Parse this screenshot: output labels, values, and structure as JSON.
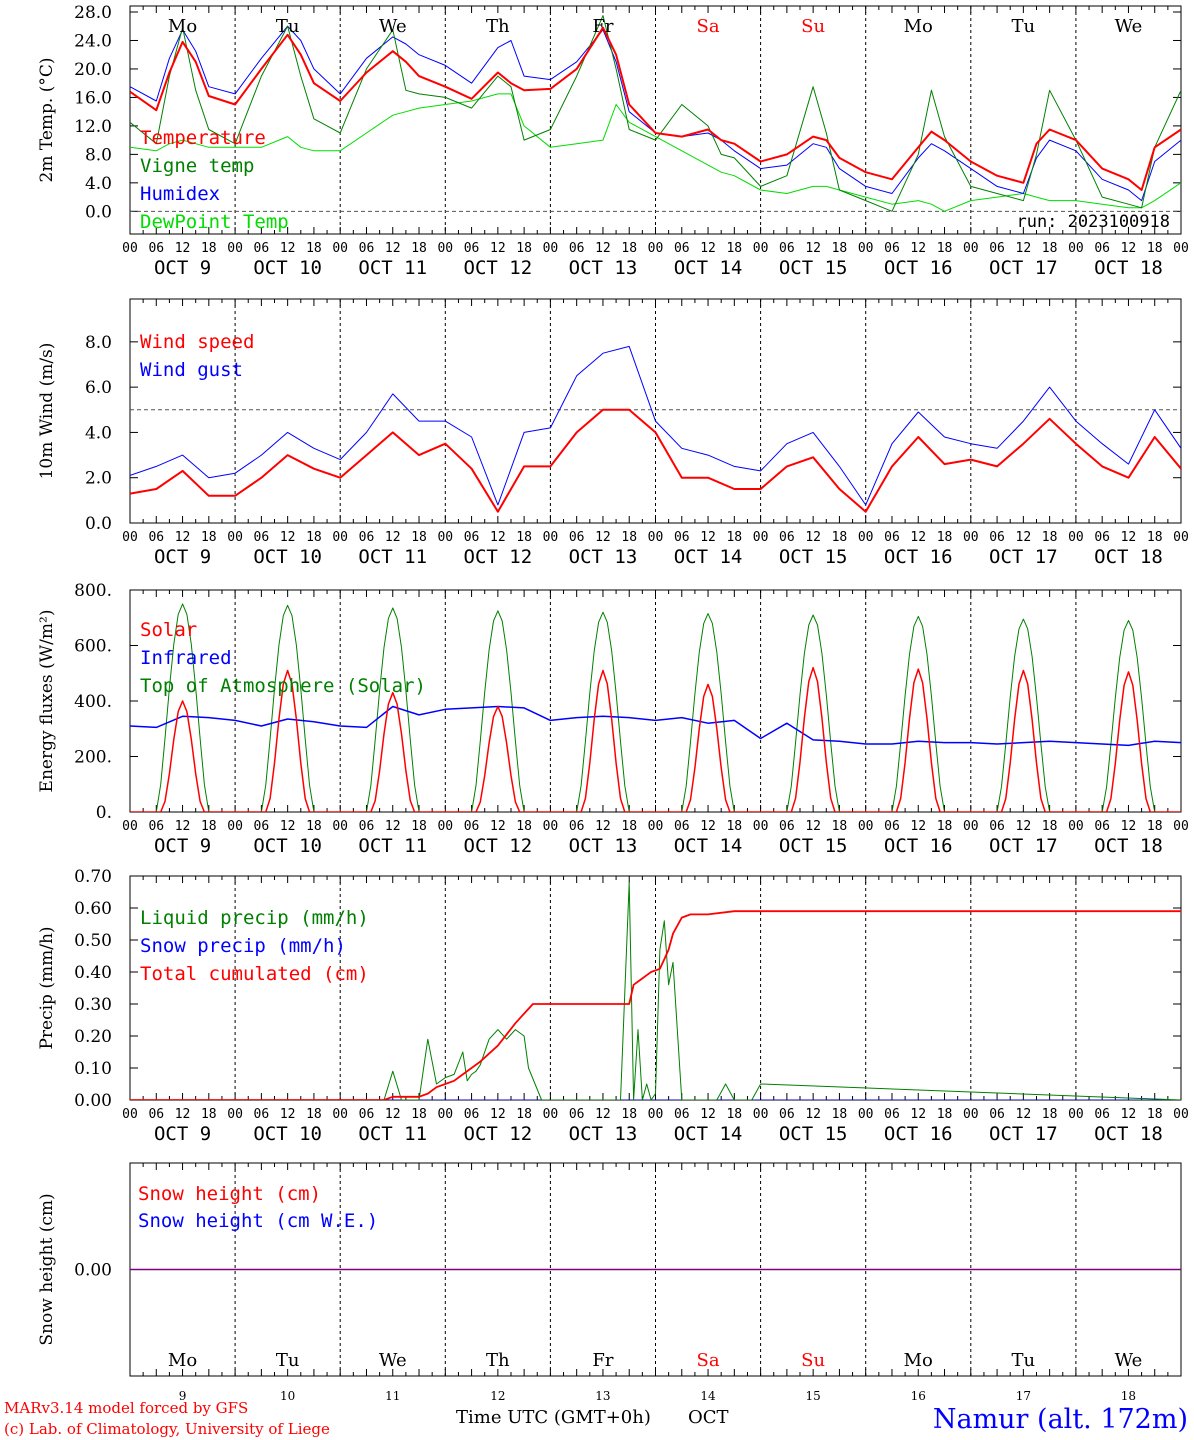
{
  "meta": {
    "run_label": "run: 2023100918",
    "credit_line1": "MARv3.14 model forced by GFS",
    "credit_line2": "(c) Lab. of Climatology, University of Liege",
    "xlabel": "Time UTC (GMT+0h)",
    "month": "OCT",
    "station": "Namur (alt. 172m)"
  },
  "days": [
    {
      "wd": "Mo",
      "date": "OCT  9",
      "num": "9",
      "weekend": false
    },
    {
      "wd": "Tu",
      "date": "OCT 10",
      "num": "10",
      "weekend": false
    },
    {
      "wd": "We",
      "date": "OCT 11",
      "num": "11",
      "weekend": false
    },
    {
      "wd": "Th",
      "date": "OCT 12",
      "num": "12",
      "weekend": false
    },
    {
      "wd": "Fr",
      "date": "OCT 13",
      "num": "13",
      "weekend": false
    },
    {
      "wd": "Sa",
      "date": "OCT 14",
      "num": "14",
      "weekend": true
    },
    {
      "wd": "Su",
      "date": "OCT 15",
      "num": "15",
      "weekend": true
    },
    {
      "wd": "Mo",
      "date": "OCT 16",
      "num": "16",
      "weekend": false
    },
    {
      "wd": "Tu",
      "date": "OCT 17",
      "num": "17",
      "weekend": false
    },
    {
      "wd": "We",
      "date": "OCT 18",
      "num": "18",
      "weekend": false
    }
  ],
  "hour_ticks": [
    "00",
    "06",
    "12",
    "18"
  ],
  "final_tick": "00",
  "colors": {
    "red": "#ff0000",
    "green": "#008000",
    "blue": "#0000ff",
    "lightgreen": "#00dd00",
    "weekend": "#ff0000",
    "station": "#0000ff",
    "snow": "#800080"
  },
  "chart_data": [
    {
      "type": "line",
      "id": "temp",
      "ylabel": "2m Temp. (°C)",
      "ylim": [
        -1.5,
        28.0
      ],
      "yticks": [
        "28.0",
        "24.0",
        "20.0",
        "16.0",
        "12.0",
        "8.0",
        "4.0",
        "0.0"
      ],
      "ytick_values": [
        28,
        24,
        20,
        16,
        12,
        8,
        4,
        0
      ],
      "refline": 0,
      "legend_placement": "left-bottom",
      "x_hours": [
        0,
        6,
        9,
        12,
        15,
        18,
        24,
        30,
        36,
        39,
        42,
        48,
        54,
        60,
        63,
        66,
        72,
        78,
        84,
        87,
        90,
        96,
        102,
        108,
        111,
        114,
        120,
        126,
        132,
        135,
        138,
        144,
        150,
        156,
        159,
        162,
        168,
        174,
        180,
        183,
        186,
        192,
        198,
        204,
        207,
        210,
        216,
        222,
        228,
        231,
        234,
        240
      ],
      "series": [
        {
          "name": "Temperature",
          "color": "#ff0000",
          "width": 2,
          "values": [
            16.8,
            14.2,
            19.5,
            23.8,
            21.0,
            16.2,
            15.0,
            20.0,
            24.8,
            22.0,
            18.0,
            15.5,
            19.5,
            22.5,
            21.0,
            19.0,
            17.5,
            15.8,
            19.5,
            18.0,
            17.0,
            17.2,
            20.0,
            25.8,
            22.0,
            15.0,
            11.0,
            10.5,
            11.5,
            10.0,
            9.5,
            7.0,
            8.0,
            10.5,
            10.0,
            7.5,
            5.5,
            4.5,
            9.0,
            11.2,
            10.0,
            7.0,
            5.0,
            4.0,
            9.5,
            11.5,
            10.0,
            6.0,
            4.5,
            3.0,
            9.0,
            11.5
          ]
        },
        {
          "name": "Vigne temp",
          "color": "#008000",
          "width": 1,
          "values": [
            12.5,
            9.5,
            19.0,
            25.8,
            17.0,
            11.5,
            9.5,
            19.0,
            26.0,
            19.0,
            13.0,
            11.0,
            20.0,
            25.5,
            17.0,
            16.5,
            16.0,
            14.5,
            19.0,
            17.5,
            10.0,
            11.5,
            19.0,
            27.5,
            20.0,
            11.5,
            10.0,
            15.0,
            12.0,
            8.0,
            7.5,
            3.5,
            5.0,
            17.5,
            11.0,
            3.0,
            1.5,
            0.0,
            8.0,
            17.0,
            10.5,
            3.5,
            2.5,
            1.5,
            8.0,
            17.0,
            10.0,
            2.0,
            1.0,
            0.5,
            9.0,
            17.0
          ]
        },
        {
          "name": "Humidex",
          "color": "#0000ff",
          "width": 1,
          "values": [
            17.5,
            15.5,
            21.5,
            25.5,
            22.5,
            17.5,
            16.5,
            21.5,
            26.0,
            24.0,
            20.0,
            16.5,
            21.5,
            24.5,
            23.5,
            22.0,
            20.5,
            18.0,
            23.0,
            24.0,
            19.0,
            18.5,
            21.0,
            25.5,
            21.0,
            14.0,
            11.0,
            10.5,
            11.0,
            10.0,
            8.5,
            6.0,
            6.5,
            9.5,
            9.0,
            6.0,
            3.5,
            2.5,
            7.5,
            9.5,
            8.5,
            6.0,
            3.5,
            2.5,
            7.5,
            10.0,
            8.5,
            4.5,
            3.0,
            1.5,
            7.0,
            10.0
          ]
        },
        {
          "name": "DewPoint Temp",
          "color": "#00dd00",
          "width": 1,
          "values": [
            9.0,
            8.5,
            9.5,
            10.0,
            9.5,
            9.0,
            9.0,
            9.0,
            10.5,
            9.0,
            8.5,
            8.5,
            11.0,
            13.5,
            14.0,
            14.5,
            15.0,
            15.5,
            16.5,
            16.5,
            12.0,
            9.0,
            9.5,
            10.0,
            15.0,
            12.5,
            10.5,
            8.5,
            6.5,
            5.5,
            5.0,
            3.0,
            2.5,
            3.5,
            3.5,
            3.0,
            2.0,
            1.0,
            1.5,
            1.0,
            0.0,
            1.5,
            2.0,
            2.5,
            2.0,
            1.5,
            1.5,
            1.0,
            0.5,
            0.5,
            1.5,
            4.0
          ]
        }
      ]
    },
    {
      "type": "line",
      "id": "wind",
      "ylabel": "10m Wind (m/s)",
      "ylim": [
        0,
        8.7
      ],
      "yticks": [
        "8.0",
        "6.0",
        "4.0",
        "2.0",
        "0.0"
      ],
      "ytick_values": [
        8,
        6,
        4,
        2,
        0
      ],
      "refline": 5.0,
      "legend_placement": "top-left",
      "x_hours": [
        0,
        6,
        12,
        18,
        24,
        30,
        36,
        42,
        48,
        54,
        60,
        66,
        72,
        78,
        84,
        90,
        96,
        102,
        108,
        114,
        120,
        126,
        132,
        138,
        144,
        150,
        156,
        162,
        168,
        174,
        180,
        186,
        192,
        198,
        204,
        210,
        216,
        222,
        228,
        234,
        240
      ],
      "series": [
        {
          "name": "Wind speed",
          "color": "#ff0000",
          "width": 2,
          "values": [
            1.3,
            1.5,
            2.3,
            1.2,
            1.2,
            2.0,
            3.0,
            2.4,
            2.0,
            3.0,
            4.0,
            3.0,
            3.5,
            2.4,
            0.5,
            2.5,
            2.5,
            4.0,
            5.0,
            5.0,
            4.0,
            2.0,
            2.0,
            1.5,
            1.5,
            2.5,
            2.9,
            1.5,
            0.5,
            2.5,
            3.8,
            2.6,
            2.8,
            2.5,
            3.5,
            4.6,
            3.5,
            2.5,
            2.0,
            3.8,
            2.4
          ]
        },
        {
          "name": "Wind gust",
          "color": "#0000ff",
          "width": 1,
          "values": [
            2.1,
            2.5,
            3.0,
            2.0,
            2.2,
            3.0,
            4.0,
            3.3,
            2.8,
            4.0,
            5.7,
            4.5,
            4.5,
            3.8,
            0.8,
            4.0,
            4.2,
            6.5,
            7.5,
            7.8,
            4.5,
            3.3,
            3.0,
            2.5,
            2.3,
            3.5,
            4.0,
            2.5,
            0.8,
            3.5,
            4.9,
            3.8,
            3.5,
            3.3,
            4.5,
            6.0,
            4.5,
            3.5,
            2.6,
            5.0,
            3.3
          ]
        }
      ]
    },
    {
      "type": "line",
      "id": "energy",
      "ylabel": "Energy fluxes (W/m²)",
      "ylim": [
        0,
        800
      ],
      "yticks": [
        "800.",
        "600.",
        "400.",
        "200.",
        "0."
      ],
      "ytick_values": [
        800,
        600,
        400,
        200,
        0
      ],
      "legend_placement": "top-left",
      "diurnal_peaks": {
        "toa_solar": [
          750,
          745,
          735,
          725,
          720,
          715,
          710,
          705,
          695,
          690
        ],
        "solar": [
          400,
          510,
          430,
          380,
          510,
          460,
          520,
          515,
          510,
          505
        ]
      },
      "infrared": {
        "x_hours": [
          0,
          6,
          12,
          18,
          24,
          30,
          36,
          42,
          48,
          54,
          60,
          66,
          72,
          78,
          84,
          90,
          96,
          102,
          108,
          114,
          120,
          126,
          132,
          138,
          144,
          150,
          156,
          162,
          168,
          174,
          180,
          186,
          192,
          198,
          204,
          210,
          216,
          222,
          228,
          234,
          240
        ],
        "values": [
          310,
          305,
          345,
          340,
          330,
          310,
          335,
          325,
          310,
          305,
          380,
          350,
          370,
          375,
          380,
          375,
          330,
          340,
          345,
          340,
          330,
          340,
          320,
          330,
          265,
          320,
          260,
          255,
          245,
          245,
          255,
          250,
          250,
          245,
          250,
          255,
          250,
          245,
          240,
          255,
          250
        ]
      },
      "series": [
        {
          "name": "Solar",
          "color": "#ff0000"
        },
        {
          "name": "Infrared",
          "color": "#0000ff"
        },
        {
          "name": "Top of Atmosphere (Solar)",
          "color": "#008000"
        }
      ]
    },
    {
      "type": "line",
      "id": "precip",
      "ylabel": "Precip (mm/h)",
      "ylim": [
        0,
        0.7
      ],
      "yticks": [
        "0.70",
        "0.60",
        "0.50",
        "0.40",
        "0.30",
        "0.20",
        "0.10",
        "0.00"
      ],
      "ytick_values": [
        0.7,
        0.6,
        0.5,
        0.4,
        0.3,
        0.2,
        0.1,
        0.0
      ],
      "legend_placement": "top-left",
      "series": [
        {
          "name": "Liquid precip (mm/h)",
          "color": "#008000",
          "x_hours": [
            0,
            58,
            60,
            62,
            66,
            68,
            70,
            72,
            74,
            76,
            77,
            78,
            79,
            80,
            82,
            84,
            86,
            88,
            90,
            91,
            94,
            96,
            102,
            108,
            112,
            114,
            115,
            116,
            117,
            118,
            119,
            120,
            121,
            122,
            123,
            124,
            126,
            128,
            130,
            132,
            134,
            136,
            138,
            140,
            142,
            144,
            240
          ],
          "values": [
            0,
            0,
            0.09,
            0,
            0,
            0.19,
            0.05,
            0.07,
            0.08,
            0.15,
            0.06,
            0.08,
            0.09,
            0.11,
            0.19,
            0.22,
            0.19,
            0.22,
            0.2,
            0.1,
            0,
            0,
            0,
            0,
            0,
            0.68,
            0,
            0.22,
            0,
            0.05,
            0,
            0.02,
            0.47,
            0.56,
            0.36,
            0.43,
            0,
            0,
            0,
            0,
            0,
            0.05,
            0,
            0,
            0,
            0.05,
            0
          ]
        },
        {
          "name": "Snow precip (mm/h)",
          "color": "#0000ff",
          "x_hours": [
            0,
            240
          ],
          "values": [
            0,
            0
          ]
        },
        {
          "name": "Total cumulated (cm)",
          "color": "#ff0000",
          "x_hours": [
            0,
            58,
            60,
            64,
            66,
            68,
            70,
            72,
            74,
            76,
            80,
            84,
            88,
            90,
            92,
            96,
            102,
            108,
            114,
            115,
            117,
            118,
            119,
            121,
            122,
            123,
            124,
            126,
            128,
            130,
            132,
            138,
            144,
            240
          ],
          "values": [
            0,
            0,
            0.01,
            0.01,
            0.01,
            0.02,
            0.04,
            0.05,
            0.06,
            0.08,
            0.12,
            0.17,
            0.24,
            0.27,
            0.3,
            0.3,
            0.3,
            0.3,
            0.3,
            0.36,
            0.38,
            0.39,
            0.4,
            0.41,
            0.44,
            0.47,
            0.52,
            0.57,
            0.58,
            0.58,
            0.58,
            0.59,
            0.59,
            0.59
          ]
        }
      ]
    },
    {
      "type": "line",
      "id": "snow",
      "ylabel": "Snow height (cm)",
      "yticks": [
        "0.00"
      ],
      "ytick_values": [
        0
      ],
      "ylim": [
        -1,
        1
      ],
      "legend_placement": "top-left",
      "series": [
        {
          "name": "Snow height (cm)",
          "color": "#ff0000",
          "x_hours": [
            0,
            240
          ],
          "values": [
            0,
            0
          ]
        },
        {
          "name": "Snow height (cm W.E.)",
          "color": "#0000ff",
          "x_hours": [
            0,
            240
          ],
          "values": [
            0,
            0
          ]
        }
      ]
    }
  ]
}
